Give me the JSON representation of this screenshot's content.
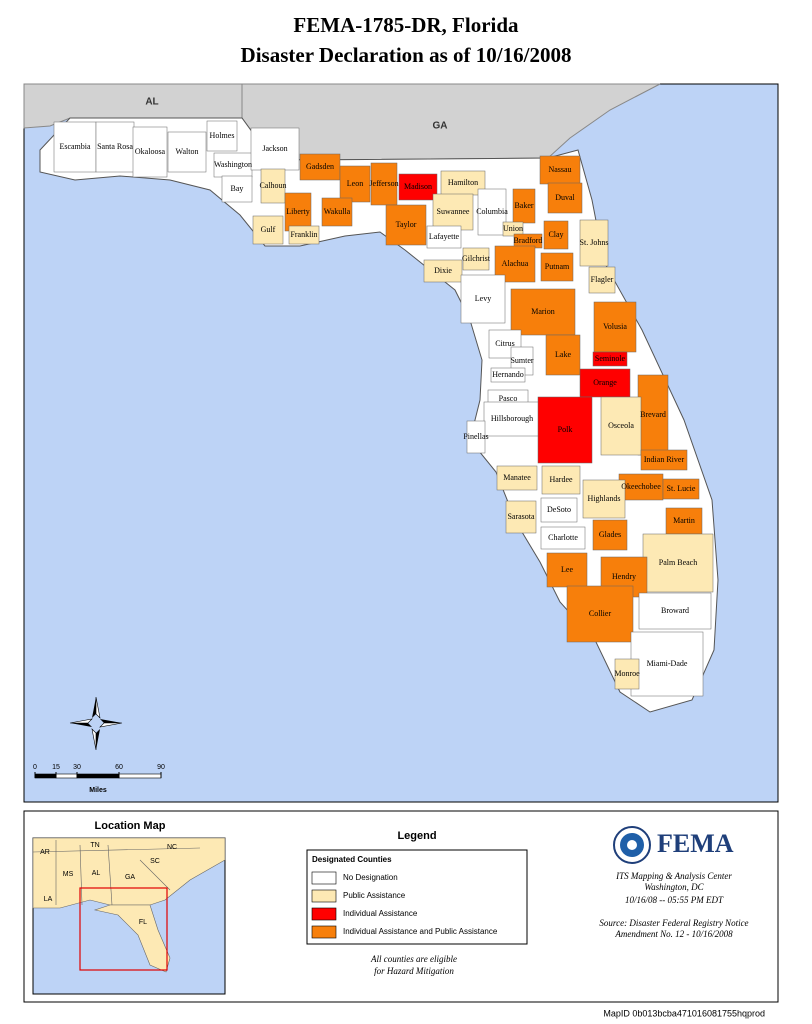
{
  "header": {
    "title_line1": "FEMA-1785-DR, Florida",
    "title_line2": "Disaster Declaration as of 10/16/2008"
  },
  "map": {
    "state_labels": [
      "AL",
      "GA"
    ],
    "counties": [
      {
        "name": "Escambia",
        "color": "#ffffff"
      },
      {
        "name": "Santa Rosa",
        "color": "#ffffff"
      },
      {
        "name": "Okaloosa",
        "color": "#ffffff"
      },
      {
        "name": "Walton",
        "color": "#ffffff"
      },
      {
        "name": "Holmes",
        "color": "#ffffff"
      },
      {
        "name": "Washington",
        "color": "#ffffff"
      },
      {
        "name": "Jackson",
        "color": "#ffffff"
      },
      {
        "name": "Bay",
        "color": "#ffffff"
      },
      {
        "name": "Calhoun",
        "color": "#fde9b4"
      },
      {
        "name": "Gulf",
        "color": "#fde9b4"
      },
      {
        "name": "Liberty",
        "color": "#f77f0b"
      },
      {
        "name": "Franklin",
        "color": "#fde9b4"
      },
      {
        "name": "Gadsden",
        "color": "#f77f0b"
      },
      {
        "name": "Leon",
        "color": "#f77f0b"
      },
      {
        "name": "Jefferson",
        "color": "#f77f0b"
      },
      {
        "name": "Wakulla",
        "color": "#f77f0b"
      },
      {
        "name": "Madison",
        "color": "#ff0000"
      },
      {
        "name": "Taylor",
        "color": "#f77f0b"
      },
      {
        "name": "Hamilton",
        "color": "#fde9b4"
      },
      {
        "name": "Suwannee",
        "color": "#fde9b4"
      },
      {
        "name": "Lafayette",
        "color": "#ffffff"
      },
      {
        "name": "Columbia",
        "color": "#ffffff"
      },
      {
        "name": "Baker",
        "color": "#f77f0b"
      },
      {
        "name": "Nassau",
        "color": "#f77f0b"
      },
      {
        "name": "Duval",
        "color": "#f77f0b"
      },
      {
        "name": "Union",
        "color": "#fde9b4"
      },
      {
        "name": "Bradford",
        "color": "#f77f0b"
      },
      {
        "name": "Clay",
        "color": "#f77f0b"
      },
      {
        "name": "St. Johns",
        "color": "#fde9b4"
      },
      {
        "name": "Gilchrist",
        "color": "#fde9b4"
      },
      {
        "name": "Dixie",
        "color": "#fde9b4"
      },
      {
        "name": "Alachua",
        "color": "#f77f0b"
      },
      {
        "name": "Putnam",
        "color": "#f77f0b"
      },
      {
        "name": "Flagler",
        "color": "#fde9b4"
      },
      {
        "name": "Levy",
        "color": "#ffffff"
      },
      {
        "name": "Marion",
        "color": "#f77f0b"
      },
      {
        "name": "Volusia",
        "color": "#f77f0b"
      },
      {
        "name": "Citrus",
        "color": "#ffffff"
      },
      {
        "name": "Sumter",
        "color": "#ffffff"
      },
      {
        "name": "Lake",
        "color": "#f77f0b"
      },
      {
        "name": "Seminole",
        "color": "#ff0000"
      },
      {
        "name": "Hernando",
        "color": "#ffffff"
      },
      {
        "name": "Orange",
        "color": "#ff0000"
      },
      {
        "name": "Pasco",
        "color": "#ffffff"
      },
      {
        "name": "Brevard",
        "color": "#f77f0b"
      },
      {
        "name": "Hillsborough",
        "color": "#ffffff"
      },
      {
        "name": "Pinellas",
        "color": "#ffffff"
      },
      {
        "name": "Polk",
        "color": "#ff0000"
      },
      {
        "name": "Osceola",
        "color": "#fde9b4"
      },
      {
        "name": "Indian River",
        "color": "#f77f0b"
      },
      {
        "name": "Manatee",
        "color": "#fde9b4"
      },
      {
        "name": "Hardee",
        "color": "#fde9b4"
      },
      {
        "name": "Okeechobee",
        "color": "#f77f0b"
      },
      {
        "name": "St. Lucie",
        "color": "#f77f0b"
      },
      {
        "name": "Highlands",
        "color": "#fde9b4"
      },
      {
        "name": "Sarasota",
        "color": "#fde9b4"
      },
      {
        "name": "DeSoto",
        "color": "#ffffff"
      },
      {
        "name": "Martin",
        "color": "#f77f0b"
      },
      {
        "name": "Charlotte",
        "color": "#ffffff"
      },
      {
        "name": "Glades",
        "color": "#f77f0b"
      },
      {
        "name": "Palm Beach",
        "color": "#fde9b4"
      },
      {
        "name": "Lee",
        "color": "#f77f0b"
      },
      {
        "name": "Hendry",
        "color": "#f77f0b"
      },
      {
        "name": "Broward",
        "color": "#ffffff"
      },
      {
        "name": "Collier",
        "color": "#f77f0b"
      },
      {
        "name": "Miami-Dade",
        "color": "#ffffff"
      },
      {
        "name": "Monroe",
        "color": "#fde9b4"
      }
    ]
  },
  "scale_bar": {
    "ticks": [
      0,
      15,
      30,
      60,
      90
    ],
    "unit": "Miles"
  },
  "location_map": {
    "title": "Location Map",
    "state_labels": [
      "AR",
      "TN",
      "NC",
      "MS",
      "AL",
      "GA",
      "SC",
      "LA",
      "FL"
    ]
  },
  "legend": {
    "title": "Legend",
    "subtitle": "Designated Counties",
    "items": [
      {
        "label": "No Designation",
        "color": "#ffffff"
      },
      {
        "label": "Public Assistance",
        "color": "#fde9b4"
      },
      {
        "label": "Individual Assistance",
        "color": "#ff0000"
      },
      {
        "label": "Individual Assistance and Public Assistance",
        "color": "#f77f0b"
      }
    ],
    "note_line1": "All counties are eligible",
    "note_line2": "for Hazard Mitigation"
  },
  "credits": {
    "logo": "FEMA",
    "center_line1": "ITS Mapping & Analysis Center",
    "center_line2": "Washington, DC",
    "timestamp": "10/16/08 -- 05:55 PM EDT",
    "source_line1": "Source: Disaster Federal Registry Notice",
    "source_line2": "Amendment No. 12 -  10/16/2008"
  },
  "map_id": "MapID 0b013bcba471016081755hqprod"
}
